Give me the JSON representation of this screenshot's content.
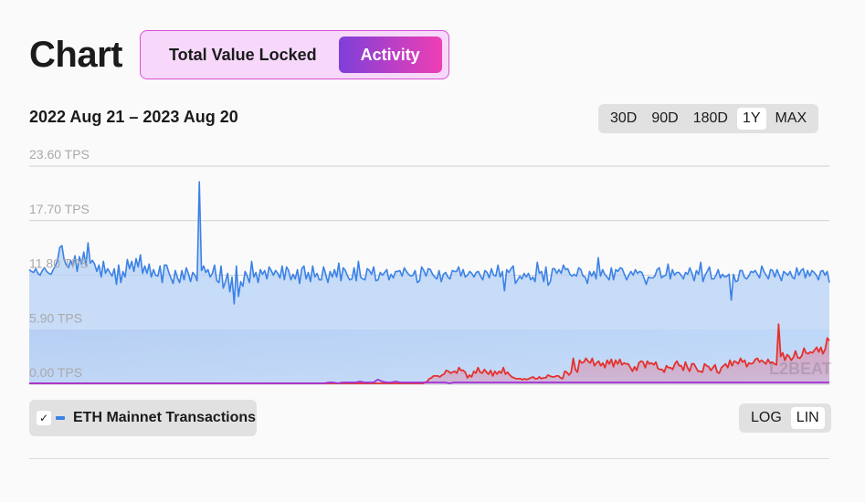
{
  "header": {
    "title": "Chart",
    "tabs": [
      {
        "label": "Total Value Locked",
        "active": false
      },
      {
        "label": "Activity",
        "active": true
      }
    ]
  },
  "range_label": "2022 Aug 21 – 2023 Aug 20",
  "timeframes": [
    {
      "label": "30D",
      "active": false
    },
    {
      "label": "90D",
      "active": false
    },
    {
      "label": "180D",
      "active": false
    },
    {
      "label": "1Y",
      "active": true
    },
    {
      "label": "MAX",
      "active": false
    }
  ],
  "scale_options": [
    {
      "label": "LOG",
      "active": false
    },
    {
      "label": "LIN",
      "active": true
    }
  ],
  "legend": {
    "checked": true,
    "label": "ETH Mainnet Transactions",
    "check_icon": "checkmark-icon"
  },
  "watermark": "L2BEAT",
  "colors": {
    "blue_line": "#3b82e6",
    "red_line": "#e5312c",
    "purple_line": "#a233d6",
    "accent_gradient_start": "#7e3fd9",
    "accent_gradient_end": "#ef3fb4"
  },
  "chart_data": {
    "type": "line",
    "x_range": [
      "2022 Aug 21",
      "2023 Aug 20"
    ],
    "ylim": [
      0,
      23.6
    ],
    "y_unit": "TPS",
    "yticks": [
      "0.00 TPS",
      "5.90 TPS",
      "11.80 TPS",
      "17.70 TPS",
      "23.60 TPS"
    ],
    "ytick_values": [
      0,
      5.9,
      11.8,
      17.7,
      23.6
    ],
    "grid": true,
    "series": [
      {
        "name": "ETH Mainnet Transactions",
        "color": "#3b82e6",
        "values": [
          12.4,
          12.2,
          12.1,
          12.5,
          12.0,
          11.8,
          12.3,
          12.6,
          12.2,
          12.0,
          11.9,
          12.4,
          12.8,
          13.4,
          14.8,
          15.0,
          13.5,
          12.9,
          12.6,
          13.4,
          12.8,
          13.9,
          12.2,
          13.8,
          13.0,
          14.3,
          12.9,
          15.3,
          13.1,
          13.4,
          13.0,
          12.2,
          12.9,
          11.6,
          13.3,
          12.0,
          12.5,
          12.1,
          11.7,
          12.5,
          10.8,
          12.9,
          11.0,
          12.2,
          11.6,
          13.5,
          12.5,
          13.3,
          12.2,
          13.6,
          12.7,
          14.0,
          12.0,
          12.8,
          12.0,
          13.0,
          11.6,
          12.4,
          11.8,
          11.7,
          12.8,
          11.0,
          12.9,
          12.9,
          12.1,
          11.5,
          10.9,
          12.3,
          11.5,
          11.0,
          12.3,
          11.3,
          12.6,
          12.0,
          11.1,
          12.1,
          11.8,
          11.2,
          21.9,
          12.3,
          12.8,
          12.1,
          12.4,
          11.6,
          12.0,
          12.9,
          11.2,
          11.0,
          12.8,
          10.4,
          11.1,
          12.0,
          10.0,
          11.6,
          8.7,
          12.8,
          9.5,
          11.1,
          10.6,
          12.2,
          11.7,
          11.0,
          13.3,
          11.6,
          12.1,
          11.0,
          12.4,
          11.9,
          12.3,
          11.4,
          12.7,
          12.3,
          11.8,
          12.3,
          12.0,
          11.5,
          12.8,
          11.3,
          12.7,
          12.3,
          11.3,
          11.9,
          11.4,
          12.4,
          10.9,
          12.5,
          12.8,
          11.4,
          12.1,
          11.1,
          12.8,
          11.6,
          12.0,
          11.3,
          11.3,
          12.7,
          11.9,
          11.0,
          12.2,
          11.6,
          12.4,
          11.6,
          13.1,
          11.2,
          12.6,
          12.3,
          11.7,
          11.3,
          11.4,
          12.6,
          11.2,
          13.3,
          11.6,
          11.4,
          11.3,
          12.5,
          12.3,
          11.9,
          12.7,
          11.2,
          11.3,
          12.1,
          11.8,
          12.1,
          12.4,
          11.3,
          11.9,
          11.5,
          12.2,
          12.2,
          12.3,
          11.7,
          12.6,
          12.2,
          11.9,
          11.7,
          11.8,
          12.3,
          11.0,
          11.2,
          12.7,
          12.3,
          11.7,
          12.5,
          12.4,
          11.9,
          11.6,
          11.4,
          12.3,
          11.1,
          11.9,
          12.1,
          11.6,
          11.4,
          12.3,
          12.2,
          12.2,
          12.7,
          11.7,
          12.4,
          11.6,
          11.8,
          12.2,
          12.0,
          11.6,
          12.1,
          12.2,
          11.7,
          11.3,
          12.3,
          12.1,
          11.5,
          12.5,
          11.8,
          11.7,
          12.9,
          11.6,
          12.2,
          10.1,
          12.4,
          12.1,
          12.5,
          12.8,
          10.9,
          11.3,
          11.7,
          11.4,
          12.0,
          11.6,
          12.0,
          11.3,
          11.6,
          11.1,
          13.2,
          12.0,
          12.2,
          11.1,
          12.7,
          10.7,
          11.1,
          12.5,
          12.5,
          12.0,
          12.4,
          12.0,
          12.9,
          12.4,
          12.5,
          11.9,
          11.7,
          11.9,
          11.7,
          12.6,
          12.4,
          11.7,
          11.6,
          10.9,
          12.2,
          11.7,
          12.2,
          11.4,
          13.7,
          11.7,
          12.4,
          11.9,
          11.6,
          11.3,
          12.6,
          11.3,
          12.4,
          12.2,
          12.6,
          12.5,
          11.9,
          11.3,
          11.8,
          12.2,
          11.8,
          12.4,
          12.0,
          12.2,
          12.1,
          11.5,
          10.8,
          11.6,
          11.5,
          11.5,
          11.7,
          12.4,
          12.6,
          11.5,
          11.7,
          11.8,
          13.0,
          11.4,
          12.4,
          11.8,
          12.1,
          12.1,
          11.8,
          11.4,
          12.1,
          11.9,
          12.6,
          12.0,
          11.2,
          12.3,
          11.9,
          13.2,
          11.1,
          11.8,
          12.2,
          12.7,
          11.4,
          11.4,
          11.8,
          12.4,
          11.5,
          11.9,
          11.6,
          11.7,
          11.9,
          9.1,
          11.9,
          11.1,
          11.2,
          12.3,
          12.3,
          11.6,
          11.4,
          11.7,
          12.2,
          12.1,
          12.3,
          11.9,
          11.5,
          12.8,
          12.2,
          11.8,
          11.4,
          12.4,
          12.3,
          11.6,
          12.4,
          11.8,
          11.2,
          12.2,
          12.0,
          11.8,
          12.2,
          11.6,
          11.4,
          12.6,
          11.8,
          12.3,
          12.5,
          11.5,
          12.3,
          11.7,
          12.3,
          12.1,
          11.8,
          11.3,
          12.2,
          12.3,
          11.8,
          12.2,
          11.0
        ]
      },
      {
        "name": "",
        "color": "#e5312c",
        "values": [
          0.1,
          0.1,
          0.1,
          0.1,
          0.1,
          0.1,
          0.1,
          0.1,
          0.1,
          0.1,
          0.1,
          0.1,
          0.1,
          0.1,
          0.1,
          0.1,
          0.1,
          0.1,
          0.1,
          0.1,
          0.1,
          0.1,
          0.1,
          0.1,
          0.1,
          0.1,
          0.1,
          0.1,
          0.1,
          0.1,
          0.1,
          0.1,
          0.1,
          0.1,
          0.1,
          0.1,
          0.1,
          0.1,
          0.1,
          0.1,
          0.1,
          0.1,
          0.1,
          0.1,
          0.1,
          0.1,
          0.1,
          0.1,
          0.1,
          0.1,
          0.1,
          0.1,
          0.1,
          0.1,
          0.1,
          0.1,
          0.1,
          0.1,
          0.1,
          0.1,
          0.1,
          0.1,
          0.1,
          0.1,
          0.1,
          0.1,
          0.1,
          0.1,
          0.1,
          0.1,
          0.1,
          0.1,
          0.1,
          0.1,
          0.1,
          0.1,
          0.1,
          0.1,
          0.1,
          0.1,
          0.1,
          0.1,
          0.1,
          0.1,
          0.1,
          0.1,
          0.1,
          0.1,
          0.1,
          0.1,
          0.1,
          0.1,
          0.1,
          0.1,
          0.1,
          0.1,
          0.1,
          0.1,
          0.1,
          0.1,
          0.1,
          0.1,
          0.1,
          0.1,
          0.1,
          0.1,
          0.1,
          0.1,
          0.1,
          0.1,
          0.1,
          0.1,
          0.1,
          0.1,
          0.1,
          0.1,
          0.1,
          0.1,
          0.1,
          0.1,
          0.1,
          0.1,
          0.1,
          0.1,
          0.1,
          0.1,
          0.1,
          0.1,
          0.1,
          0.1,
          0.1,
          0.1,
          0.1,
          0.1,
          0.1,
          0.1,
          0.1,
          0.1,
          0.1,
          0.1,
          0.1,
          0.1,
          0.1,
          0.1,
          0.1,
          0.1,
          0.1,
          0.1,
          0.1,
          0.1,
          0.1,
          0.1,
          0.1,
          0.1,
          0.1,
          0.1,
          0.1,
          0.1,
          0.1,
          0.1,
          0.1,
          0.1,
          0.1,
          0.1,
          0.1,
          0.1,
          0.1,
          0.1,
          0.1,
          0.1,
          0.1,
          0.1,
          0.1,
          0.1,
          0.1,
          0.1,
          0.1,
          0.1,
          0.1,
          0.1,
          0.1,
          0.1,
          0.1,
          0.1,
          0.1,
          0.1,
          0.1,
          0.2,
          0.3,
          0.6,
          0.7,
          0.9,
          0.9,
          0.9,
          0.8,
          1.0,
          1.1,
          1.5,
          1.4,
          1.2,
          1.3,
          1.4,
          1.2,
          1.8,
          1.5,
          1.5,
          1.3,
          0.7,
          1.0,
          0.8,
          1.4,
          1.2,
          1.8,
          1.3,
          1.2,
          1.6,
          1.3,
          1.1,
          1.5,
          0.9,
          1.4,
          1.1,
          1.4,
          1.2,
          1.8,
          1.1,
          1.3,
          1.0,
          0.8,
          0.7,
          0.6,
          0.6,
          0.6,
          0.5,
          0.6,
          0.5,
          0.6,
          0.7,
          0.8,
          0.6,
          0.6,
          0.8,
          0.6,
          0.7,
          0.7,
          1.0,
          0.9,
          0.8,
          0.8,
          0.9,
          0.9,
          0.7,
          0.6,
          1.4,
          1.3,
          1.0,
          1.3,
          2.8,
          1.6,
          1.3,
          2.6,
          2.3,
          2.4,
          2.8,
          2.5,
          2.3,
          2.8,
          2.0,
          2.3,
          2.5,
          2.0,
          2.3,
          1.8,
          2.6,
          2.2,
          2.7,
          1.9,
          2.6,
          2.2,
          2.7,
          2.1,
          2.3,
          2.2,
          2.2,
          1.8,
          1.4,
          1.9,
          1.5,
          2.3,
          2.5,
          2.4,
          1.8,
          2.5,
          2.2,
          2.3,
          2.1,
          2.4,
          1.7,
          1.6,
          1.6,
          1.3,
          2.0,
          1.8,
          1.8,
          1.6,
          2.2,
          2.5,
          2.0,
          2.0,
          1.5,
          2.4,
          1.8,
          1.4,
          2.2,
          2.2,
          1.8,
          1.4,
          1.4,
          1.3,
          2.2,
          2.0,
          1.9,
          1.5,
          1.8,
          2.1,
          1.3,
          1.2,
          1.8,
          2.0,
          2.2,
          1.8,
          2.6,
          2.0,
          2.5,
          2.4,
          2.2,
          2.8,
          2.4,
          2.6,
          1.9,
          2.3,
          2.2,
          2.3,
          2.7,
          2.8,
          2.4,
          2.6,
          2.4,
          2.2,
          2.7,
          2.3,
          2.4,
          2.2,
          2.1,
          6.5,
          3.0,
          3.4,
          2.6,
          3.2,
          3.0,
          2.6,
          2.9,
          3.6,
          2.9,
          2.8,
          3.1,
          3.9,
          3.4,
          3.3,
          3.5,
          3.4,
          3.7,
          4.0,
          3.5,
          4.0,
          3.3,
          3.8,
          5.0,
          4.7
        ]
      },
      {
        "name": "",
        "color": "#a233d6",
        "values": [
          0.1,
          0.1,
          0.1,
          0.1,
          0.1,
          0.1,
          0.1,
          0.1,
          0.1,
          0.1,
          0.1,
          0.1,
          0.1,
          0.1,
          0.1,
          0.1,
          0.1,
          0.1,
          0.1,
          0.1,
          0.1,
          0.1,
          0.1,
          0.1,
          0.1,
          0.1,
          0.1,
          0.1,
          0.1,
          0.1,
          0.1,
          0.1,
          0.1,
          0.1,
          0.1,
          0.1,
          0.1,
          0.1,
          0.1,
          0.1,
          0.1,
          0.1,
          0.1,
          0.1,
          0.1,
          0.1,
          0.1,
          0.1,
          0.1,
          0.1,
          0.1,
          0.1,
          0.1,
          0.1,
          0.1,
          0.1,
          0.1,
          0.1,
          0.1,
          0.1,
          0.1,
          0.1,
          0.1,
          0.1,
          0.1,
          0.1,
          0.1,
          0.2,
          0.2,
          0.1,
          0.2,
          0.2,
          0.2,
          0.2,
          0.3,
          0.2,
          0.2,
          0.2,
          0.5,
          0.3,
          0.2,
          0.2,
          0.3,
          0.2,
          0.2,
          0.2,
          0.2,
          0.2,
          0.2,
          0.2,
          0.2,
          0.2,
          0.2,
          0.2,
          0.1,
          0.2,
          0.2,
          0.2,
          0.2,
          0.2,
          0.2,
          0.2,
          0.2,
          0.2,
          0.2,
          0.2,
          0.2,
          0.2,
          0.2,
          0.2,
          0.2,
          0.2,
          0.2,
          0.2,
          0.2,
          0.2,
          0.2,
          0.2,
          0.2,
          0.2,
          0.2,
          0.2,
          0.2,
          0.2,
          0.2,
          0.2,
          0.2,
          0.2,
          0.2,
          0.2,
          0.2,
          0.2,
          0.2,
          0.2,
          0.2,
          0.2,
          0.2,
          0.2,
          0.2,
          0.2,
          0.2,
          0.2,
          0.2,
          0.2,
          0.2,
          0.2,
          0.2,
          0.2,
          0.2,
          0.2,
          0.2,
          0.2,
          0.2,
          0.2,
          0.2,
          0.2,
          0.2,
          0.2,
          0.2,
          0.2,
          0.2,
          0.2,
          0.2,
          0.2,
          0.2,
          0.2,
          0.2,
          0.2,
          0.2,
          0.2,
          0.2,
          0.2,
          0.2,
          0.2,
          0.2,
          0.2,
          0.2,
          0.2,
          0.2,
          0.2
        ]
      }
    ]
  }
}
